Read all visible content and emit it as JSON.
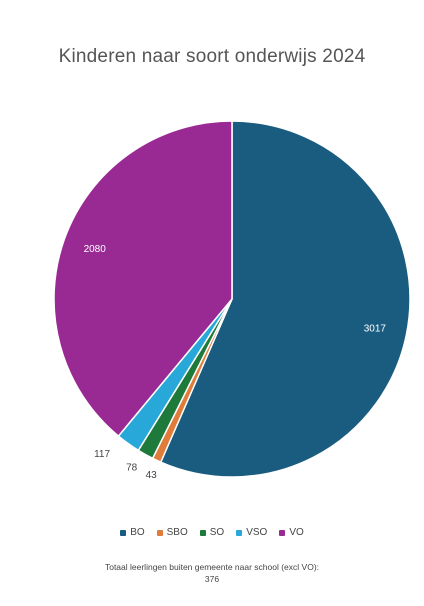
{
  "chart_data": {
    "type": "pie",
    "title": "Kinderen naar soort onderwijs 2024",
    "categories": [
      "BO",
      "SBO",
      "SO",
      "VSO",
      "VO"
    ],
    "values": [
      3017,
      43,
      78,
      117,
      2080
    ],
    "colors": [
      "#1a5c7f",
      "#e07b39",
      "#1e7a3a",
      "#27a8d8",
      "#9a2a93"
    ],
    "legend_position": "bottom",
    "data_labels": [
      "3017",
      "43",
      "78",
      "117",
      "2080"
    ]
  },
  "footnote": {
    "line1": "Totaal leerlingen buiten gemeente naar school (excl VO):",
    "line2": "376"
  }
}
